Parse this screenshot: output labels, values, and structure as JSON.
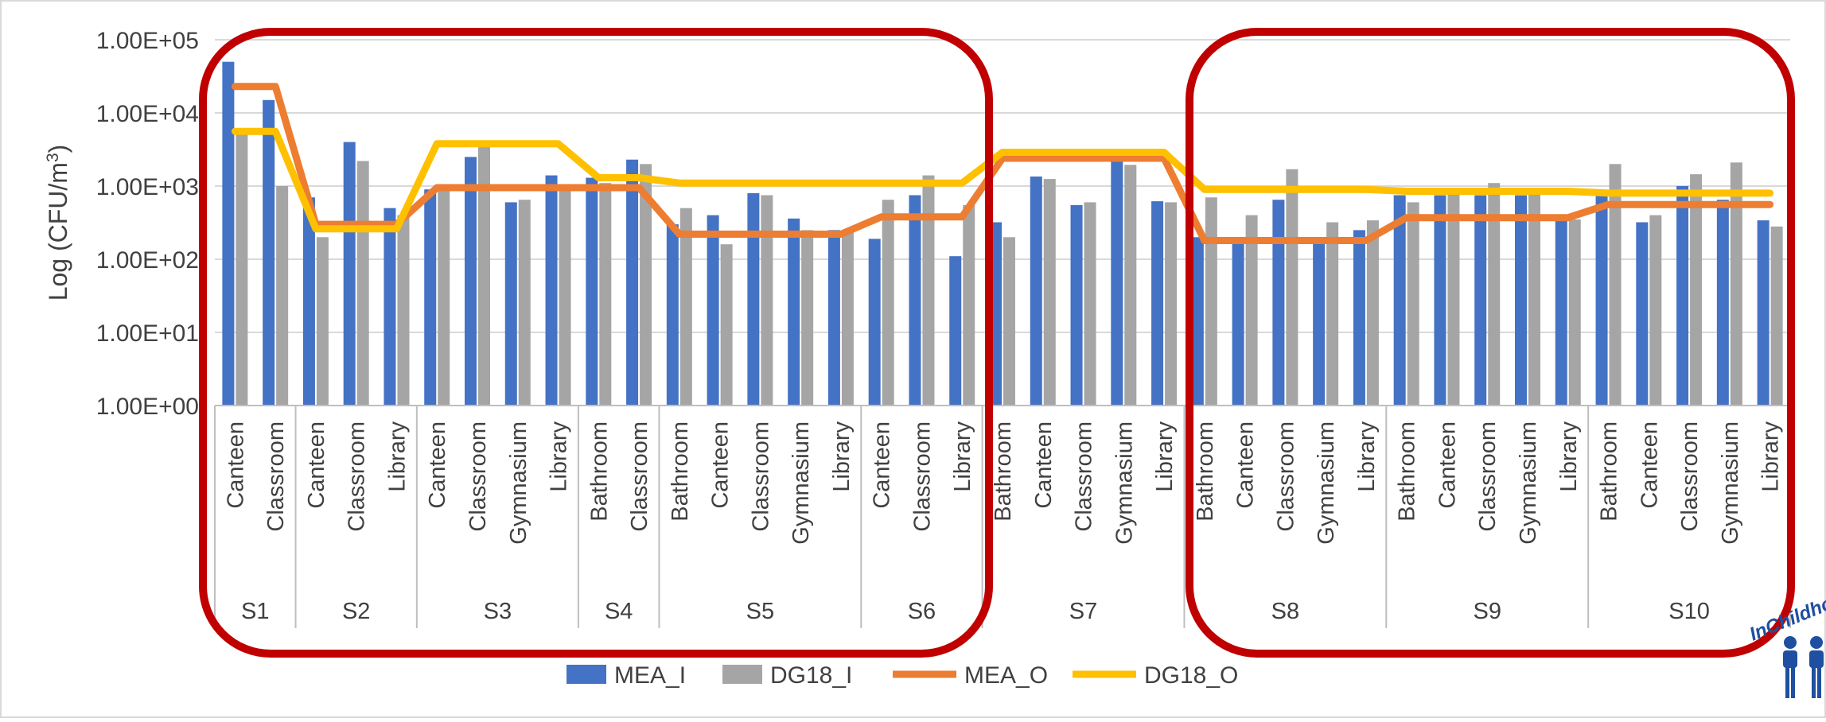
{
  "chart_data": {
    "type": "bar",
    "y_scale": "log",
    "ylabel": "Log (CFU/m³)",
    "ylabel_parts": {
      "main": "Log (CFU/m",
      "sup": "3",
      "end": ")"
    },
    "ylim": [
      1,
      100000
    ],
    "y_ticks": [
      "1.00E+00",
      "1.00E+01",
      "1.00E+02",
      "1.00E+03",
      "1.00E+04",
      "1.00E+05"
    ],
    "grid": true,
    "legend_position": "bottom",
    "groups": [
      {
        "label": "S1",
        "categories": [
          "Canteen",
          "Classroom"
        ]
      },
      {
        "label": "S2",
        "categories": [
          "Canteen",
          "Classroom",
          "Library"
        ]
      },
      {
        "label": "S3",
        "categories": [
          "Canteen",
          "Classroom",
          "Gymnasium",
          "Library"
        ]
      },
      {
        "label": "S4",
        "categories": [
          "Bathroom",
          "Classroom"
        ]
      },
      {
        "label": "S5",
        "categories": [
          "Bathroom",
          "Canteen",
          "Classroom",
          "Gymnasium",
          "Library"
        ]
      },
      {
        "label": "S6",
        "categories": [
          "Canteen",
          "Classroom",
          "Library"
        ]
      },
      {
        "label": "S7",
        "categories": [
          "Bathroom",
          "Canteen",
          "Classroom",
          "Gymnasium",
          "Library"
        ]
      },
      {
        "label": "S8",
        "categories": [
          "Bathroom",
          "Canteen",
          "Classroom",
          "Gymnasium",
          "Library"
        ]
      },
      {
        "label": "S9",
        "categories": [
          "Bathroom",
          "Canteen",
          "Classroom",
          "Gymnasium",
          "Library"
        ]
      },
      {
        "label": "S10",
        "categories": [
          "Bathroom",
          "Canteen",
          "Classroom",
          "Gymnasium",
          "Library"
        ]
      }
    ],
    "series": [
      {
        "name": "MEA_I",
        "kind": "bar",
        "color": "#4472C4",
        "values": [
          50000,
          15000,
          700,
          4000,
          500,
          900,
          2500,
          600,
          1400,
          1300,
          2300,
          300,
          400,
          800,
          360,
          250,
          190,
          750,
          110,
          320,
          1350,
          550,
          2600,
          620,
          200,
          200,
          650,
          200,
          250,
          750,
          750,
          750,
          750,
          350,
          750,
          320,
          1000,
          650,
          340
        ]
      },
      {
        "name": "DG18_I",
        "kind": "bar",
        "color": "#A5A5A5",
        "values": [
          6000,
          1000,
          200,
          2200,
          400,
          850,
          3500,
          650,
          1050,
          1100,
          2000,
          500,
          160,
          750,
          250,
          240,
          650,
          1400,
          550,
          200,
          1250,
          600,
          1950,
          600,
          700,
          400,
          1700,
          320,
          340,
          600,
          800,
          1100,
          900,
          350,
          2000,
          400,
          1450,
          2100,
          280
        ]
      },
      {
        "name": "MEA_O",
        "kind": "line",
        "color": "#ED7D31",
        "values": [
          23000,
          23000,
          300,
          300,
          300,
          950,
          950,
          950,
          950,
          950,
          950,
          220,
          220,
          220,
          220,
          220,
          380,
          380,
          380,
          2400,
          2400,
          2400,
          2400,
          2400,
          180,
          180,
          180,
          180,
          180,
          370,
          370,
          370,
          370,
          370,
          560,
          560,
          560,
          560,
          560
        ]
      },
      {
        "name": "DG18_O",
        "kind": "line",
        "color": "#FFC000",
        "values": [
          5600,
          5600,
          260,
          260,
          260,
          3800,
          3800,
          3800,
          3800,
          1300,
          1300,
          1100,
          1100,
          1100,
          1100,
          1100,
          1100,
          1100,
          1100,
          2900,
          2900,
          2900,
          2900,
          2900,
          900,
          900,
          900,
          900,
          900,
          850,
          850,
          850,
          850,
          850,
          800,
          800,
          800,
          800,
          800
        ]
      }
    ]
  },
  "annotations": {
    "highlight_color": "#C00000",
    "logo_text": "InChildhood",
    "logo_color": "#1F4FA0"
  }
}
